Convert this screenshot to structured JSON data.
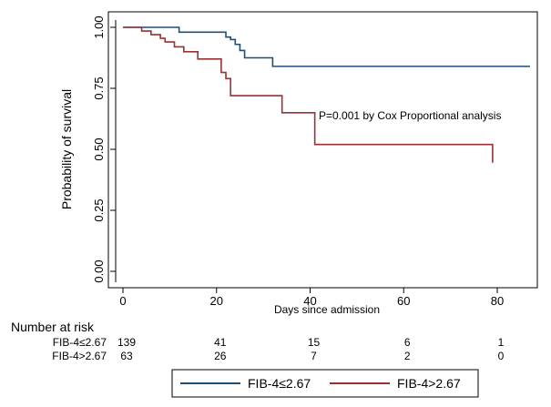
{
  "chart_data": {
    "type": "line",
    "step": true,
    "xlabel": "Days since admission",
    "ylabel": "Probability of survival",
    "xlim": [
      0,
      90
    ],
    "ylim": [
      0,
      1
    ],
    "x_ticks": [
      0,
      20,
      40,
      60,
      80
    ],
    "x_tick_labels": [
      "0",
      "20",
      "40",
      "60",
      "80"
    ],
    "y_ticks": [
      0,
      0.25,
      0.5,
      0.75,
      1
    ],
    "y_tick_labels": [
      "0.00",
      "0.25",
      "0.50",
      "0.75",
      "1.00"
    ],
    "grid": false,
    "legend_position": "bottom",
    "annotation": "P=0.001 by Cox Proportional analysis",
    "series": [
      {
        "name": "FIB-4≤2.67",
        "color": "#1f4e79",
        "x": [
          0,
          12,
          22,
          23,
          24,
          25,
          26,
          32,
          87
        ],
        "y": [
          1.0,
          0.98,
          0.96,
          0.95,
          0.93,
          0.905,
          0.875,
          0.84,
          0.84
        ]
      },
      {
        "name": "FIB-4>2.67",
        "color": "#9b3034",
        "x": [
          0,
          4,
          6,
          8,
          9,
          11,
          13,
          16,
          21,
          22,
          23,
          34,
          41,
          79
        ],
        "y": [
          1.0,
          0.985,
          0.97,
          0.955,
          0.94,
          0.92,
          0.9,
          0.87,
          0.815,
          0.79,
          0.72,
          0.65,
          0.52,
          0.445
        ]
      }
    ]
  },
  "risk_table": {
    "title": "Number at risk",
    "rows": [
      {
        "label": "FIB-4≤2.67",
        "values": [
          "139",
          "41",
          "15",
          "6",
          "1"
        ]
      },
      {
        "label": "FIB-4>2.67",
        "values": [
          "63",
          "26",
          "7",
          "2",
          "0"
        ]
      }
    ]
  }
}
